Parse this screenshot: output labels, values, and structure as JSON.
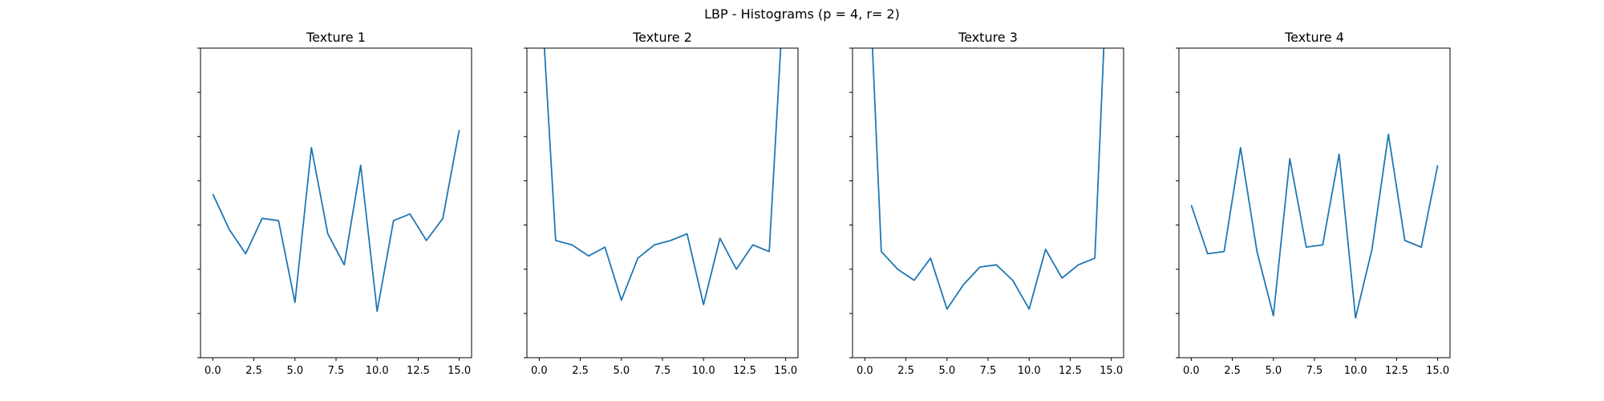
{
  "figure": {
    "suptitle": "LBP - Histograms (p = 4, r= 2)"
  },
  "style": {
    "line_color": "#1f77b4",
    "axis_color": "#000000",
    "background": "#ffffff"
  },
  "chart_data": [
    {
      "type": "line",
      "title": "Texture 1",
      "xlabel": "",
      "ylabel": "",
      "x": [
        0,
        1,
        2,
        3,
        4,
        5,
        6,
        7,
        8,
        9,
        10,
        11,
        12,
        13,
        14,
        15
      ],
      "values": [
        0.77,
        0.69,
        0.635,
        0.715,
        0.71,
        0.525,
        0.875,
        0.68,
        0.61,
        0.835,
        0.505,
        0.71,
        0.725,
        0.665,
        0.715,
        0.915
      ],
      "xlim": [
        -0.75,
        15.75
      ],
      "ylim": [
        0.4,
        1.1
      ],
      "xticks": [
        0.0,
        2.5,
        5.0,
        7.5,
        10.0,
        12.5,
        15.0
      ],
      "xtick_labels": [
        "0.0",
        "2.5",
        "5.0",
        "7.5",
        "10.0",
        "12.5",
        "15.0"
      ],
      "yticks": [
        0.4,
        0.5,
        0.6,
        0.7,
        0.8,
        0.9,
        1.0,
        1.1
      ],
      "ytick_labels_visible": false,
      "grid": false
    },
    {
      "type": "line",
      "title": "Texture 2",
      "xlabel": "",
      "ylabel": "",
      "x": [
        0,
        1,
        2,
        3,
        4,
        5,
        6,
        7,
        8,
        9,
        10,
        11,
        12,
        13,
        14,
        15
      ],
      "values": [
        1.3,
        0.665,
        0.655,
        0.63,
        0.65,
        0.53,
        0.625,
        0.655,
        0.665,
        0.68,
        0.52,
        0.67,
        0.6,
        0.655,
        0.64,
        1.3
      ],
      "xlim": [
        -0.75,
        15.75
      ],
      "ylim": [
        0.4,
        1.1
      ],
      "xticks": [
        0.0,
        2.5,
        5.0,
        7.5,
        10.0,
        12.5,
        15.0
      ],
      "xtick_labels": [
        "0.0",
        "2.5",
        "5.0",
        "7.5",
        "10.0",
        "12.5",
        "15.0"
      ],
      "yticks": [
        0.4,
        0.5,
        0.6,
        0.7,
        0.8,
        0.9,
        1.0,
        1.1
      ],
      "ytick_labels_visible": false,
      "grid": false
    },
    {
      "type": "line",
      "title": "Texture 3",
      "xlabel": "",
      "ylabel": "",
      "x": [
        0,
        1,
        2,
        3,
        4,
        5,
        6,
        7,
        8,
        9,
        10,
        11,
        12,
        13,
        14,
        15
      ],
      "values": [
        1.5,
        0.64,
        0.6,
        0.575,
        0.625,
        0.51,
        0.565,
        0.605,
        0.61,
        0.575,
        0.51,
        0.645,
        0.58,
        0.61,
        0.625,
        1.5
      ],
      "xlim": [
        -0.75,
        15.75
      ],
      "ylim": [
        0.4,
        1.1
      ],
      "xticks": [
        0.0,
        2.5,
        5.0,
        7.5,
        10.0,
        12.5,
        15.0
      ],
      "xtick_labels": [
        "0.0",
        "2.5",
        "5.0",
        "7.5",
        "10.0",
        "12.5",
        "15.0"
      ],
      "yticks": [
        0.4,
        0.5,
        0.6,
        0.7,
        0.8,
        0.9,
        1.0,
        1.1
      ],
      "ytick_labels_visible": false,
      "grid": false
    },
    {
      "type": "line",
      "title": "Texture 4",
      "xlabel": "",
      "ylabel": "",
      "x": [
        0,
        1,
        2,
        3,
        4,
        5,
        6,
        7,
        8,
        9,
        10,
        11,
        12,
        13,
        14,
        15
      ],
      "values": [
        0.745,
        0.635,
        0.64,
        0.875,
        0.64,
        0.495,
        0.85,
        0.65,
        0.655,
        0.86,
        0.49,
        0.645,
        0.905,
        0.665,
        0.65,
        0.835
      ],
      "xlim": [
        -0.75,
        15.75
      ],
      "ylim": [
        0.4,
        1.1
      ],
      "xticks": [
        0.0,
        2.5,
        5.0,
        7.5,
        10.0,
        12.5,
        15.0
      ],
      "xtick_labels": [
        "0.0",
        "2.5",
        "5.0",
        "7.5",
        "10.0",
        "12.5",
        "15.0"
      ],
      "yticks": [
        0.4,
        0.5,
        0.6,
        0.7,
        0.8,
        0.9,
        1.0,
        1.1
      ],
      "ytick_labels_visible": false,
      "grid": false
    }
  ]
}
